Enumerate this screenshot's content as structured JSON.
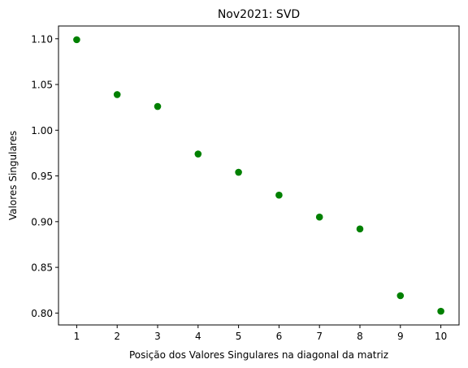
{
  "chart_data": {
    "type": "scatter",
    "title": "Nov2021: SVD",
    "xlabel": "Posição dos Valores Singulares na diagonal da matriz",
    "ylabel": "Valores Singulares",
    "x": [
      1,
      2,
      3,
      4,
      5,
      6,
      7,
      8,
      9,
      10
    ],
    "y": [
      1.099,
      1.039,
      1.026,
      0.974,
      0.954,
      0.929,
      0.905,
      0.892,
      0.819,
      0.802
    ],
    "xlim": [
      0.55,
      10.45
    ],
    "ylim": [
      0.787,
      1.114
    ],
    "xticks": [
      1,
      2,
      3,
      4,
      5,
      6,
      7,
      8,
      9,
      10
    ],
    "xtick_labels": [
      "1",
      "2",
      "3",
      "4",
      "5",
      "6",
      "7",
      "8",
      "9",
      "10"
    ],
    "yticks": [
      0.8,
      0.85,
      0.9,
      0.95,
      1.0,
      1.05,
      1.1
    ],
    "ytick_labels": [
      "0.80",
      "0.85",
      "0.90",
      "0.95",
      "1.00",
      "1.05",
      "1.10"
    ],
    "marker_color": "#008000",
    "grid": false,
    "legend": "none"
  }
}
